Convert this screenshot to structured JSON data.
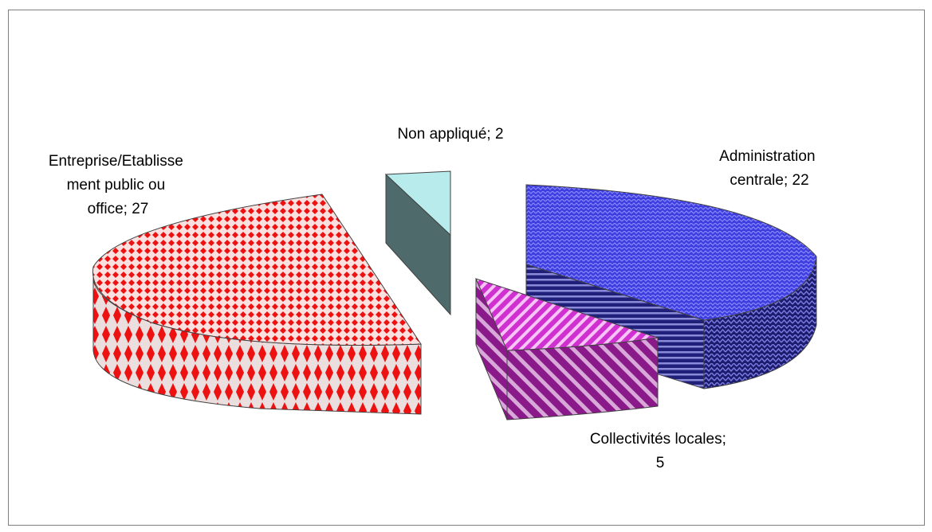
{
  "chart_data": {
    "type": "pie",
    "style": "3d-exploded",
    "slices": [
      {
        "label": "Administration centrale",
        "value": 22,
        "label_lines": [
          "Administration",
          "centrale; 22"
        ],
        "color": "#3a3adc",
        "pattern": "zigzag"
      },
      {
        "label": "Collectivités locales",
        "value": 5,
        "label_lines": [
          "Collectivités locales;",
          "5"
        ],
        "color": "#cc22cc",
        "pattern": "diagonal-stripes"
      },
      {
        "label": "Entreprise/Etablissement public ou office",
        "value": 27,
        "label_lines": [
          "Entreprise/Etablisse",
          "ment public ou",
          "office; 27"
        ],
        "color": "#ee1111",
        "pattern": "diamonds"
      },
      {
        "label": "Non appliqué",
        "value": 2,
        "label_lines": [
          "Non appliqué; 2"
        ],
        "color": "#b8ecec",
        "pattern": "solid"
      }
    ]
  }
}
